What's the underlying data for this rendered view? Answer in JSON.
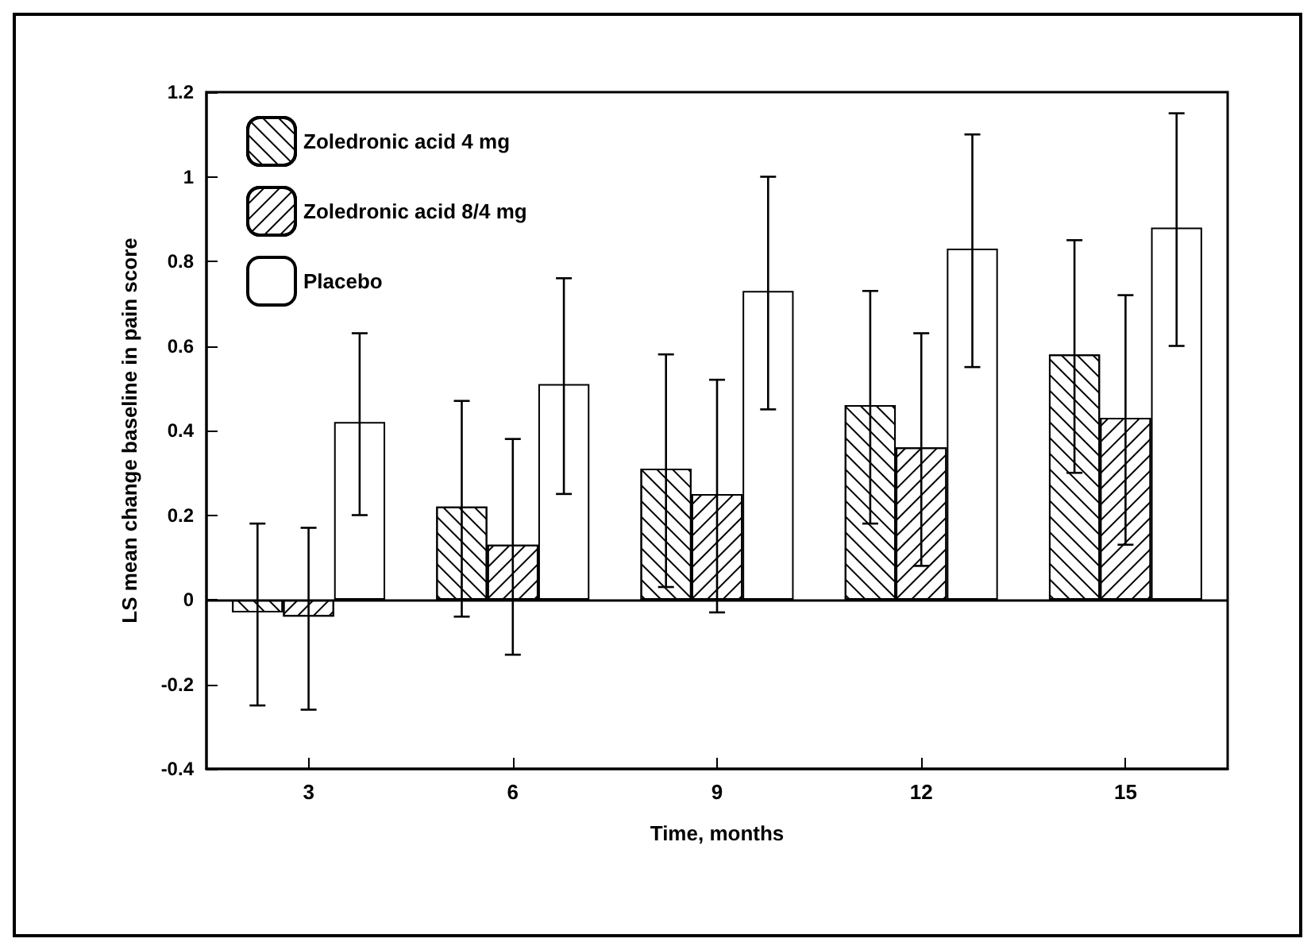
{
  "chart_data": {
    "type": "bar",
    "xlabel": "Time, months",
    "ylabel": "LS mean change baseline in pain score",
    "categories": [
      "3",
      "6",
      "9",
      "12",
      "15"
    ],
    "series": [
      {
        "name": "Zoledronic acid 4 mg",
        "color": "#ffffff",
        "values": [
          -0.03,
          0.22,
          0.31,
          0.46,
          0.58
        ],
        "errors": [
          [
            -0.25,
            0.18
          ],
          [
            -0.04,
            0.47
          ],
          [
            0.03,
            0.58
          ],
          [
            0.18,
            0.73
          ],
          [
            0.3,
            0.85
          ]
        ]
      },
      {
        "name": "Zoledronic acid 8/4 mg",
        "color": "#ffffff",
        "values": [
          -0.04,
          0.13,
          0.25,
          0.36,
          0.43
        ],
        "errors": [
          [
            -0.26,
            0.17
          ],
          [
            -0.13,
            0.38
          ],
          [
            -0.03,
            0.52
          ],
          [
            0.08,
            0.63
          ],
          [
            0.13,
            0.72
          ]
        ]
      },
      {
        "name": "Placebo",
        "color": "#ffffff",
        "values": [
          0.42,
          0.51,
          0.73,
          0.83,
          0.88
        ],
        "errors": [
          [
            0.2,
            0.63
          ],
          [
            0.25,
            0.76
          ],
          [
            0.45,
            1.0
          ],
          [
            0.55,
            1.1
          ],
          [
            0.6,
            1.15
          ]
        ]
      }
    ],
    "ylim": [
      -0.4,
      1.2
    ],
    "yticks": [
      -0.4,
      -0.2,
      0,
      0.2,
      0.4,
      0.6,
      0.8,
      1,
      1.2
    ],
    "ref_lines": [
      {
        "axis": "y",
        "value": 0
      }
    ],
    "grid": false,
    "legend": "top left"
  }
}
